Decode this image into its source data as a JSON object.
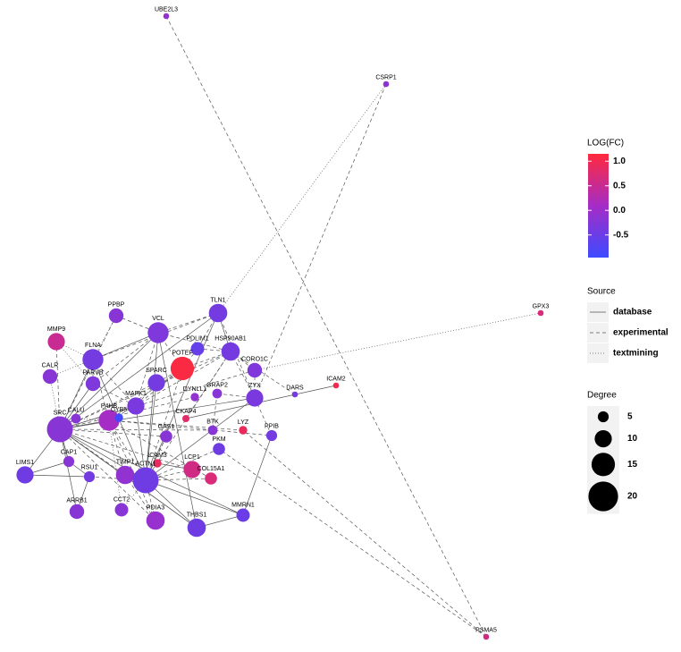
{
  "legend": {
    "color": {
      "title": "LOG(FC)",
      "lim": [
        -0.96,
        1.15
      ],
      "ticks": [
        {
          "value": 1,
          "label": "1.0"
        },
        0.5,
        {
          "value": 0,
          "label": "0.0"
        },
        -0.5
      ]
    },
    "source": {
      "title": "Source",
      "items": [
        "database",
        "experimental",
        "textmining"
      ]
    },
    "size": {
      "title": "Degree",
      "items": [
        5,
        10,
        15,
        20
      ]
    }
  },
  "nodes": [
    {
      "label": "UBE2L3",
      "logfc": -0.1,
      "degree": 1
    },
    {
      "label": "CSRP1",
      "logfc": -0.15,
      "degree": 1
    },
    {
      "label": "GPX3",
      "logfc": 0.7,
      "degree": 1
    },
    {
      "label": "PSMA5",
      "logfc": 0.6,
      "degree": 1
    },
    {
      "label": "ICAM2",
      "logfc": 1.0,
      "degree": 1
    },
    {
      "label": "DARS",
      "logfc": -0.4,
      "degree": 1
    },
    {
      "label": "TLN1",
      "logfc": -0.4,
      "degree": 11
    },
    {
      "label": "PPBP",
      "logfc": -0.2,
      "degree": 8
    },
    {
      "label": "MMP9",
      "logfc": 0.5,
      "degree": 10
    },
    {
      "label": "VCL",
      "logfc": -0.3,
      "degree": 13
    },
    {
      "label": "PDLIM1",
      "logfc": -0.55,
      "degree": 7
    },
    {
      "label": "POTEF",
      "logfc": 1.1,
      "degree": 15
    },
    {
      "label": "HSP90AB1",
      "logfc": -0.4,
      "degree": 11
    },
    {
      "label": "CORO1C",
      "logfc": -0.3,
      "degree": 8
    },
    {
      "label": "FLNA",
      "logfc": -0.4,
      "degree": 13
    },
    {
      "label": "CALR",
      "logfc": -0.2,
      "degree": 8
    },
    {
      "label": "PARVB",
      "logfc": -0.3,
      "degree": 8
    },
    {
      "label": "SPARC",
      "logfc": -0.4,
      "degree": 10
    },
    {
      "label": "GRAP2",
      "logfc": -0.2,
      "degree": 4
    },
    {
      "label": "ZYX",
      "logfc": -0.35,
      "degree": 10
    },
    {
      "label": "MAPK1",
      "logfc": -0.35,
      "degree": 10
    },
    {
      "label": "DYNLL1",
      "logfc": -0.1,
      "degree": 3
    },
    {
      "label": "CALU",
      "logfc": -0.2,
      "degree": 4
    },
    {
      "label": "SRC",
      "logfc": -0.2,
      "degree": 17
    },
    {
      "label": "P4HB",
      "logfc": 0.1,
      "degree": 13
    },
    {
      "label": "CYB5",
      "logfc": -0.9,
      "degree": 3
    },
    {
      "label": "CKAP4",
      "logfc": 0.8,
      "degree": 2
    },
    {
      "label": "BTK",
      "logfc": -0.2,
      "degree": 4
    },
    {
      "label": "LYZ",
      "logfc": 0.9,
      "degree": 3
    },
    {
      "label": "PPIB",
      "logfc": -0.4,
      "degree": 5
    },
    {
      "label": "CAP1",
      "logfc": -0.2,
      "degree": 5
    },
    {
      "label": "TIMP1",
      "logfc": -0.1,
      "degree": 11
    },
    {
      "label": "ICAM3",
      "logfc": 0.9,
      "degree": 3
    },
    {
      "label": "GAS1",
      "logfc": -0.2,
      "degree": 6
    },
    {
      "label": "PKM",
      "logfc": -0.45,
      "degree": 6
    },
    {
      "label": "LCP1",
      "logfc": 0.6,
      "degree": 10
    },
    {
      "label": "COL15A1",
      "logfc": 0.7,
      "degree": 6
    },
    {
      "label": "RSU1",
      "logfc": -0.4,
      "degree": 5
    },
    {
      "label": "LIMS1",
      "logfc": -0.45,
      "degree": 10
    },
    {
      "label": "ARRB1",
      "logfc": -0.2,
      "degree": 8
    },
    {
      "label": "CCT2",
      "logfc": -0.2,
      "degree": 7
    },
    {
      "label": "PDIA3",
      "logfc": -0.05,
      "degree": 11
    },
    {
      "label": "THBS1",
      "logfc": -0.45,
      "degree": 11
    },
    {
      "label": "MMRN1",
      "logfc": -0.5,
      "degree": 7
    },
    {
      "label": "ACTN1",
      "logfc": -0.45,
      "degree": 17
    }
  ]
}
